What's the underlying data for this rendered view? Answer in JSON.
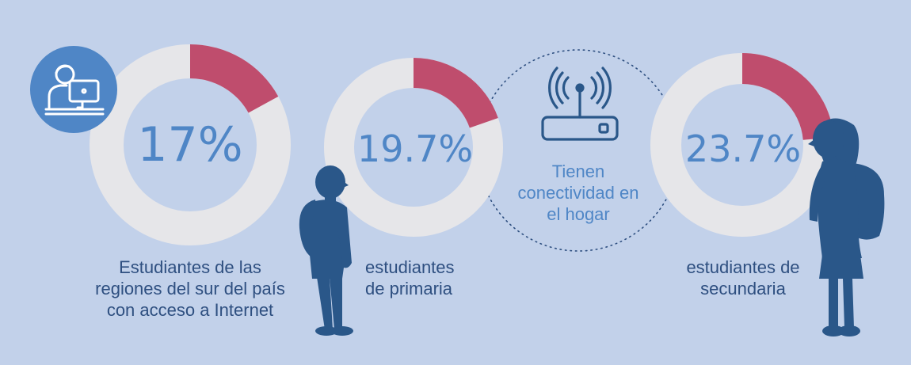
{
  "colors": {
    "background": "#c2d1ea",
    "ring": "#e6e6e9",
    "highlight": "#bf4d6d",
    "percent_text": "#4f86c6",
    "caption_text": "#2e4f80",
    "silhouette": "#2a5789",
    "icon_circle": "#4f86c6"
  },
  "chart_data": {
    "type": "pie",
    "subtype": "donut",
    "series": [
      {
        "value": 17,
        "label": "17%",
        "caption": [
          "Estudiantes de las",
          "regiones del sur del país",
          "con acceso a Internet"
        ]
      },
      {
        "value": 19.7,
        "label": "19.7%",
        "caption": [
          "estudiantes",
          "de primaria"
        ]
      },
      {
        "value": 23.7,
        "label": "23.7%",
        "caption": [
          "estudiantes de",
          "secundaria"
        ]
      }
    ]
  },
  "center": {
    "text": [
      "Tienen",
      "conectividad en",
      "el hogar"
    ],
    "icon": "wifi-router-icon"
  },
  "icons": {
    "student_computer": "student-computer-icon",
    "boy_silhouette": "boy-student-silhouette",
    "girl_silhouette": "girl-student-silhouette"
  }
}
